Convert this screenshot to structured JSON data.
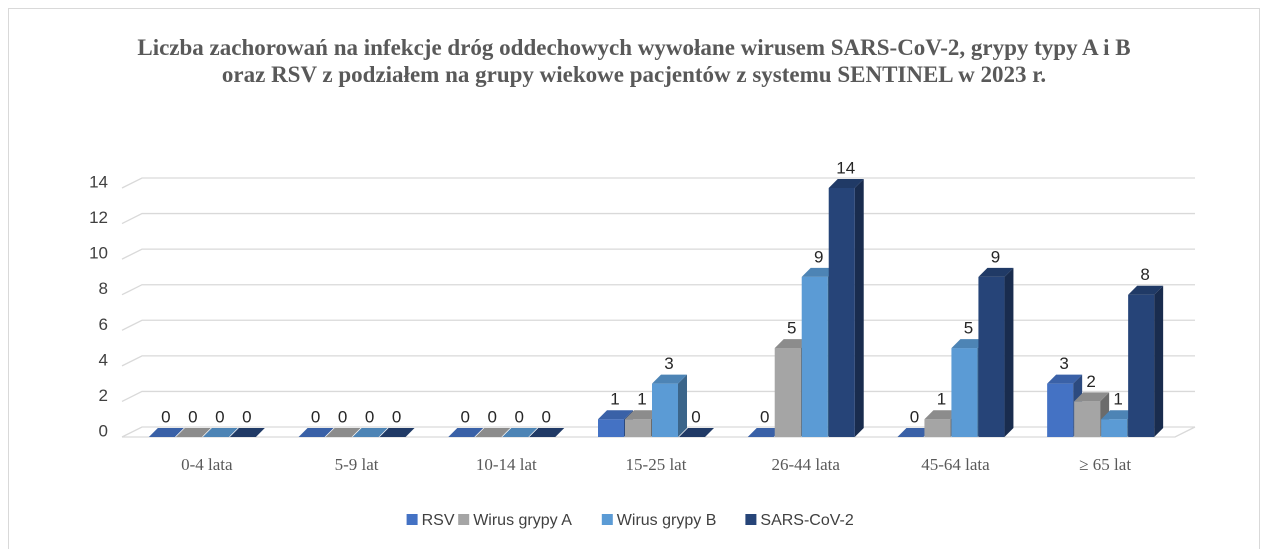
{
  "chart_data": {
    "type": "bar3d",
    "title": "Liczba zachorowań na infekcje dróg oddechowych wywołane wirusem SARS-CoV-2, grypy typy A i B oraz RSV z podziałem na grupy wiekowe pacjentów z systemu SENTINEL w 2023 r.",
    "categories": [
      "0-4 lata",
      "5-9 lat",
      "10-14 lat",
      "15-25 lat",
      "26-44 lata",
      "45-64 lata",
      "≥ 65 lat"
    ],
    "series": [
      {
        "name": "RSV",
        "color": "#4472c4",
        "values": [
          0,
          0,
          0,
          1,
          0,
          0,
          3
        ]
      },
      {
        "name": "Wirus grypy A",
        "color": "#a5a5a5",
        "values": [
          0,
          0,
          0,
          1,
          5,
          1,
          2
        ]
      },
      {
        "name": "Wirus grypy B",
        "color": "#5b9bd5",
        "values": [
          0,
          0,
          0,
          3,
          9,
          5,
          1
        ]
      },
      {
        "name": "SARS-CoV-2",
        "color": "#264478",
        "values": [
          0,
          0,
          0,
          0,
          14,
          9,
          8
        ]
      }
    ],
    "ylim": [
      0,
      14
    ],
    "yticks": [
      0,
      2,
      4,
      6,
      8,
      10,
      12,
      14
    ],
    "grid": true,
    "legend": "bottom"
  }
}
